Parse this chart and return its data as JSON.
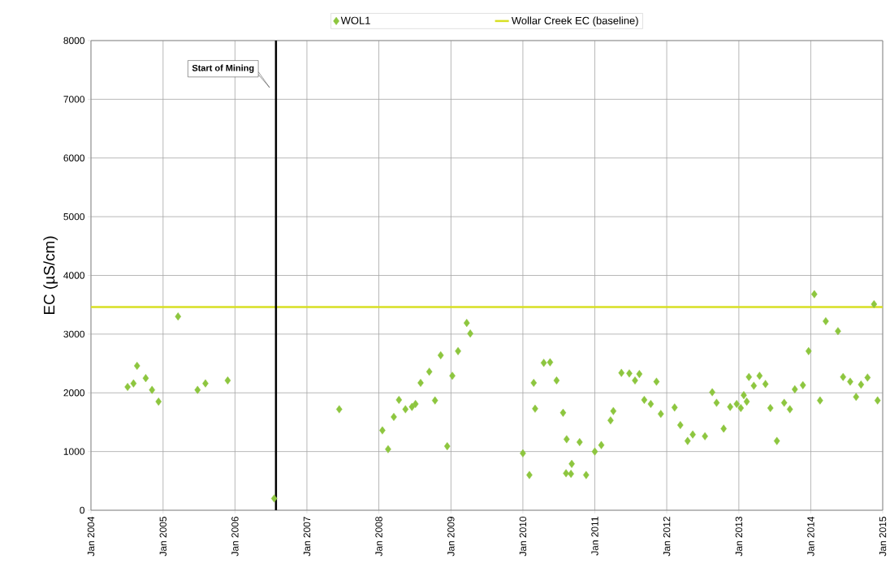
{
  "chart_data": {
    "type": "scatter",
    "ylabel": "EC (µS/cm)",
    "xlim": [
      "2004-01",
      "2015-01"
    ],
    "xticks": [
      {
        "value": "2004-01",
        "label": "Jan 2004"
      },
      {
        "value": "2005-01",
        "label": "Jan 2005"
      },
      {
        "value": "2006-01",
        "label": "Jan 2006"
      },
      {
        "value": "2007-01",
        "label": "Jan 2007"
      },
      {
        "value": "2008-01",
        "label": "Jan 2008"
      },
      {
        "value": "2009-01",
        "label": "Jan 2009"
      },
      {
        "value": "2010-01",
        "label": "Jan 2010"
      },
      {
        "value": "2011-01",
        "label": "Jan 2011"
      },
      {
        "value": "2012-01",
        "label": "Jan 2012"
      },
      {
        "value": "2013-01",
        "label": "Jan 2013"
      },
      {
        "value": "2014-01",
        "label": "Jan 2014"
      },
      {
        "value": "2015-01",
        "label": "Jan 2015"
      }
    ],
    "ylim": [
      0,
      8000
    ],
    "yticks": [
      0,
      1000,
      2000,
      3000,
      4000,
      5000,
      6000,
      7000,
      8000
    ],
    "grid": true,
    "legend": "top",
    "series": [
      {
        "name": "WOL1",
        "color": "#8dc63f",
        "marker": "diamond",
        "x": [
          "2004-07-05",
          "2004-08-04",
          "2004-08-22",
          "2004-10-05",
          "2004-11-06",
          "2004-12-09",
          "2005-03-18",
          "2005-06-25",
          "2005-08-04",
          "2005-11-25",
          "2006-07-19",
          "2007-06-14",
          "2008-01-19",
          "2008-02-17",
          "2008-03-17",
          "2008-04-12",
          "2008-05-15",
          "2008-06-17",
          "2008-07-05",
          "2008-07-31",
          "2008-09-13",
          "2008-10-12",
          "2008-11-10",
          "2008-12-13",
          "2009-01-08",
          "2009-02-06",
          "2009-03-22",
          "2009-04-09",
          "2010-01-01",
          "2010-02-03",
          "2010-02-25",
          "2010-03-04",
          "2010-04-17",
          "2010-05-19",
          "2010-06-21",
          "2010-07-24",
          "2010-08-08",
          "2010-08-11",
          "2010-09-02",
          "2010-09-06",
          "2010-10-16",
          "2010-11-18",
          "2011-01-01",
          "2011-02-03",
          "2011-03-22",
          "2011-04-05",
          "2011-05-16",
          "2011-06-25",
          "2011-07-24",
          "2011-08-15",
          "2011-09-09",
          "2011-10-12",
          "2011-11-10",
          "2011-12-02",
          "2012-02-10",
          "2012-03-10",
          "2012-04-16",
          "2012-05-12",
          "2012-07-13",
          "2012-08-19",
          "2012-09-10",
          "2012-10-16",
          "2012-11-18",
          "2012-12-21",
          "2013-01-11",
          "2013-01-26",
          "2013-02-10",
          "2013-02-21",
          "2013-03-18",
          "2013-04-16",
          "2013-05-16",
          "2013-06-10",
          "2013-07-13",
          "2013-08-19",
          "2013-09-17",
          "2013-10-12",
          "2013-11-22",
          "2013-12-21",
          "2014-01-19",
          "2014-02-17",
          "2014-03-18",
          "2014-05-19",
          "2014-06-14",
          "2014-07-20",
          "2014-08-19",
          "2014-09-13",
          "2014-10-16",
          "2014-11-18",
          "2014-12-06"
        ],
        "values": [
          2100,
          2160,
          2460,
          2250,
          2050,
          1850,
          3300,
          2050,
          2160,
          2210,
          200,
          1720,
          1360,
          1040,
          1590,
          1880,
          1720,
          1760,
          1810,
          2170,
          2360,
          1870,
          2640,
          1090,
          2290,
          2710,
          3190,
          3010,
          970,
          600,
          2170,
          1730,
          2510,
          2520,
          2210,
          1660,
          630,
          1210,
          620,
          790,
          1160,
          600,
          1000,
          1110,
          1530,
          1690,
          2340,
          2330,
          2210,
          2320,
          1880,
          1810,
          2190,
          1640,
          1750,
          1450,
          1180,
          1290,
          1260,
          2010,
          1830,
          1390,
          1760,
          1810,
          1740,
          1960,
          1850,
          2270,
          2120,
          2290,
          2150,
          1740,
          1180,
          1830,
          1720,
          2060,
          2130,
          2710,
          3680,
          1870,
          3220,
          3050,
          2270,
          2190,
          1930,
          2140,
          2260,
          3510,
          1870
        ]
      },
      {
        "name": "Wollar Creek  EC (baseline)",
        "color": "#d7df23",
        "type": "line",
        "marker": "none",
        "x": [
          "2004-01",
          "2015-01"
        ],
        "values": [
          3460,
          3460
        ]
      }
    ],
    "ref_lines": [
      {
        "axis": "x",
        "value": "2006-07-28",
        "label": "Start of Mining",
        "color": "#000000"
      }
    ]
  }
}
